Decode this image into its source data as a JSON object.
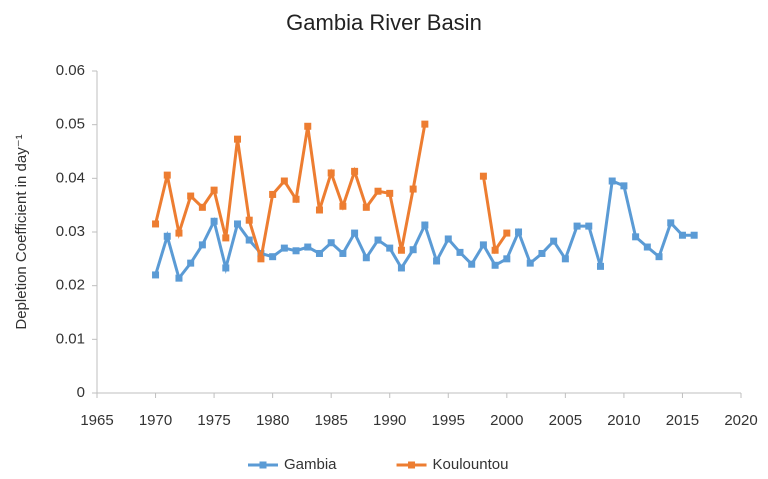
{
  "chart_data": {
    "type": "line",
    "title": "Gambia River Basin",
    "ylabel": "Depletion Coefficient in day⁻¹",
    "x": [
      1970,
      1971,
      1972,
      1973,
      1974,
      1975,
      1976,
      1977,
      1978,
      1979,
      1980,
      1981,
      1982,
      1983,
      1984,
      1985,
      1986,
      1987,
      1988,
      1989,
      1990,
      1991,
      1992,
      1993,
      1994,
      1995,
      1996,
      1997,
      1998,
      1999,
      2000,
      2001,
      2002,
      2003,
      2004,
      2005,
      2006,
      2007,
      2008,
      2009,
      2010,
      2011,
      2012,
      2013,
      2014,
      2015,
      2016
    ],
    "series": [
      {
        "name": "Gambia",
        "color": "#5b9bd5",
        "values": [
          0.022,
          0.0292,
          0.0214,
          0.0242,
          0.0276,
          0.032,
          0.0233,
          0.0315,
          0.0285,
          0.026,
          0.0254,
          0.027,
          0.0265,
          0.0272,
          0.026,
          0.028,
          0.026,
          0.0298,
          0.0252,
          0.0285,
          0.027,
          0.0233,
          0.0267,
          0.0313,
          0.0246,
          0.0287,
          0.0262,
          0.024,
          0.0276,
          0.0238,
          0.025,
          0.03,
          0.0242,
          0.026,
          0.0283,
          0.025,
          0.0311,
          0.0311,
          0.0236,
          0.0395,
          0.0386,
          0.0291,
          0.0272,
          0.0254,
          0.0317,
          0.0294,
          0.0294
        ]
      },
      {
        "name": "Koulountou",
        "color": "#ed7d31",
        "values": [
          0.0315,
          0.0406,
          0.0298,
          0.0367,
          0.0346,
          0.0378,
          0.0289,
          0.0473,
          0.0322,
          0.025,
          0.037,
          0.0395,
          0.0361,
          0.0497,
          0.0341,
          0.041,
          0.0348,
          0.0413,
          0.0346,
          0.0376,
          0.0372,
          0.0266,
          0.038,
          0.0501,
          null,
          null,
          null,
          null,
          0.0404,
          0.0266,
          0.0298,
          null,
          null,
          null,
          null,
          null,
          null,
          null,
          null,
          null,
          null,
          null,
          null,
          null,
          null,
          null,
          null
        ]
      }
    ],
    "xlim": [
      1965,
      2020
    ],
    "xticks": [
      1965,
      1970,
      1975,
      1980,
      1985,
      1990,
      1995,
      2000,
      2005,
      2010,
      2015,
      2020
    ],
    "ylim": [
      0,
      0.06
    ],
    "yticks": [
      0,
      0.01,
      0.02,
      0.03,
      0.04,
      0.05,
      0.06
    ],
    "grid": false,
    "legend": "bottom"
  }
}
